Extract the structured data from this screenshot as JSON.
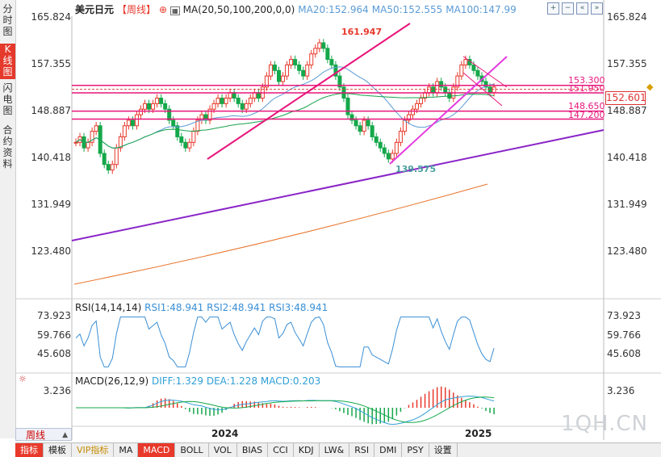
{
  "side_tabs": [
    {
      "label": "分时图",
      "active": false
    },
    {
      "label": "K线图",
      "active": true
    },
    {
      "label": "闪电图",
      "active": false
    },
    {
      "label": "合约资料",
      "active": false
    }
  ],
  "header": {
    "symbol": "美元日元",
    "period": "【周线】",
    "ma_label": "MA(20,50,100,200,0,0)",
    "ma20": "MA20:152.964",
    "ma50": "MA50:152.555",
    "ma100": "MA100:147.99"
  },
  "price_axis": {
    "right": [
      "165.824",
      "157.355",
      "148.887",
      "140.418",
      "131.949",
      "123.480"
    ],
    "left": [
      "165.824",
      "157.355",
      "148.887",
      "140.418",
      "131.949",
      "123.480"
    ]
  },
  "current_price": "152.601",
  "levels": [
    "153.300",
    "151.950",
    "148.650",
    "147.200"
  ],
  "annotations": {
    "high": "161.947",
    "low": "139.575"
  },
  "rsi": {
    "label": "RSI(14,14,14)",
    "rsi1": "RSI1:48.941",
    "rsi2": "RSI2:48.941",
    "rsi3": "RSI3:48.941",
    "axis": [
      "73.923",
      "59.766",
      "45.608"
    ]
  },
  "macd": {
    "label": "MACD(26,12,9)",
    "diff": "DIFF:1.329",
    "dea": "DEA:1.228",
    "macd": "MACD:0.203",
    "axis": [
      "3.236"
    ]
  },
  "x_axis": [
    "2024",
    "2025"
  ],
  "period_selector": "周线",
  "bottom_tabs": [
    {
      "label": "指标",
      "on": true,
      "vip": false
    },
    {
      "label": "模板",
      "on": false,
      "vip": false
    },
    {
      "label": "VIP指标",
      "on": false,
      "vip": true
    },
    {
      "label": "MA",
      "on": false,
      "vip": false
    },
    {
      "label": "MACD",
      "on": true,
      "vip": false
    },
    {
      "label": "BOLL",
      "on": false,
      "vip": false
    },
    {
      "label": "VOL",
      "on": false,
      "vip": false
    },
    {
      "label": "BIAS",
      "on": false,
      "vip": false
    },
    {
      "label": "CCI",
      "on": false,
      "vip": false
    },
    {
      "label": "KDJ",
      "on": false,
      "vip": false
    },
    {
      "label": "LW&",
      "on": false,
      "vip": false
    },
    {
      "label": "RSI",
      "on": false,
      "vip": false
    },
    {
      "label": "DMI",
      "on": false,
      "vip": false
    },
    {
      "label": "PSY",
      "on": false,
      "vip": false
    },
    {
      "label": "设置",
      "on": false,
      "vip": false
    }
  ],
  "watermark": "1QH.CN",
  "colors": {
    "up": "#e8392b",
    "down": "#14a84a",
    "ma20": "#5a9bd5",
    "ma50": "#18a24c",
    "ma100": "#e8742b",
    "level": "#e8157a",
    "trend": "#8a24c8",
    "rsi": "#3a8fd6",
    "diff": "#2f9fd6",
    "dea": "#14a84a"
  }
}
